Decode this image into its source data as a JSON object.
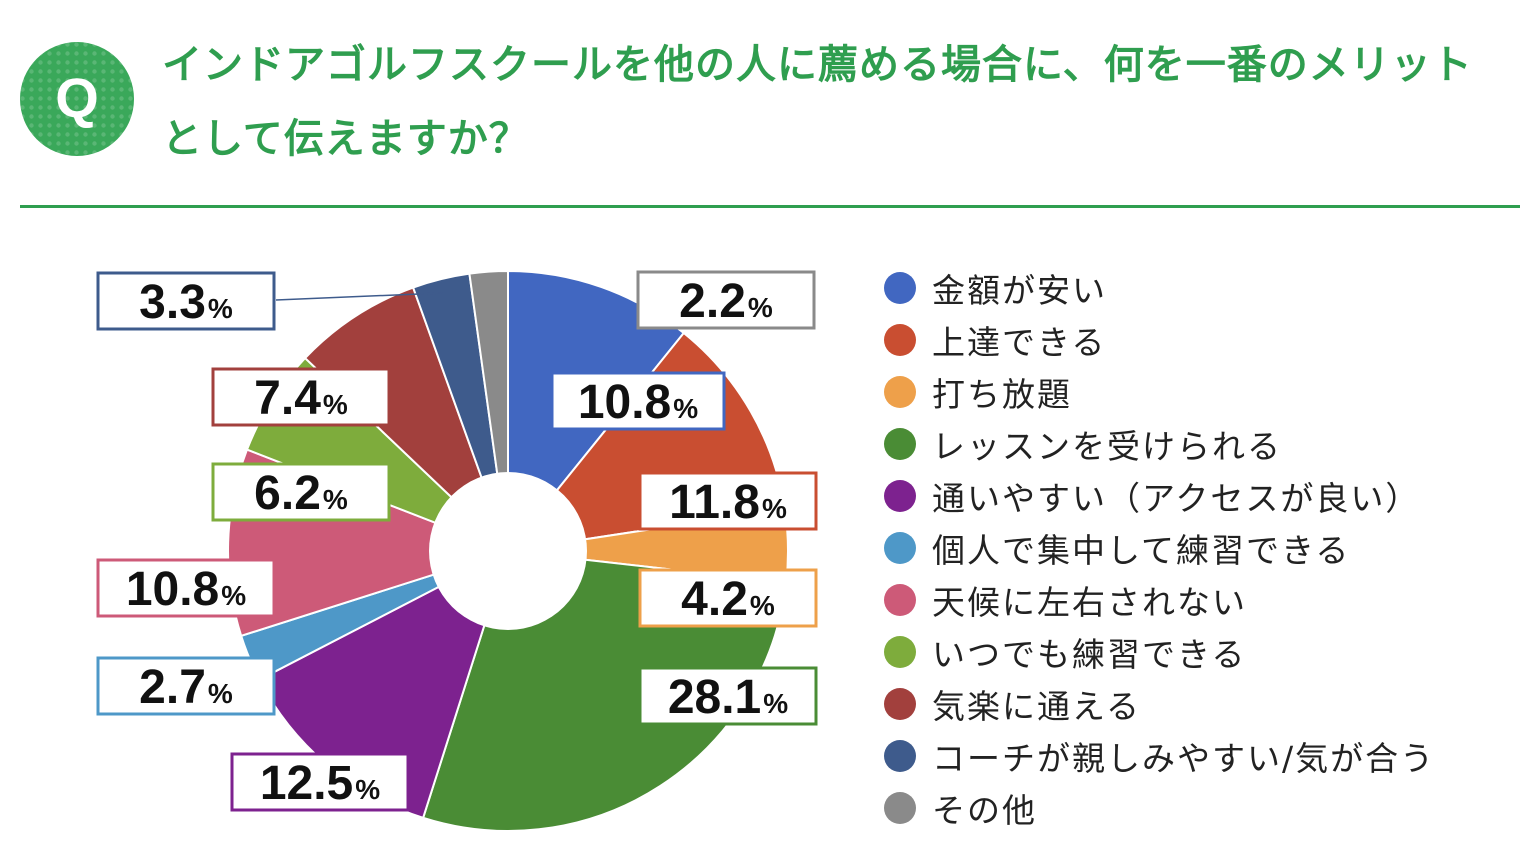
{
  "question": {
    "badge_letter": "Q",
    "title_line1": "インドアゴルフスクールを他の人に薦める場合に、何を一番のメリット",
    "title_line2": "として伝えますか？"
  },
  "colors": {
    "accent": "#2f9e4f",
    "badge": "#3aa85a"
  },
  "chart_data": {
    "type": "pie",
    "style": "donut",
    "unit": "%",
    "legend_position": "right",
    "slices": [
      {
        "label": "金額が安い",
        "value": 10.8,
        "color": "#4167c1",
        "label_text": "10.8"
      },
      {
        "label": "上達できる",
        "value": 11.8,
        "color": "#c94e31",
        "label_text": "11.8"
      },
      {
        "label": "打ち放題",
        "value": 4.2,
        "color": "#eea04a",
        "label_text": "4.2"
      },
      {
        "label": "レッスンを受けられる",
        "value": 28.1,
        "color": "#4a8c35",
        "label_text": "28.1"
      },
      {
        "label": "通いやすい（アクセスが良い）",
        "value": 12.5,
        "color": "#7d228f",
        "label_text": "12.5"
      },
      {
        "label": "個人で集中して練習できる",
        "value": 2.7,
        "color": "#4e98c8",
        "label_text": "2.7"
      },
      {
        "label": "天候に左右されない",
        "value": 10.8,
        "color": "#cd5a78",
        "label_text": "10.8"
      },
      {
        "label": "いつでも練習できる",
        "value": 6.2,
        "color": "#7eac3c",
        "label_text": "6.2"
      },
      {
        "label": "気楽に通える",
        "value": 7.4,
        "color": "#a2403d",
        "label_text": "7.4"
      },
      {
        "label": "コーチが親しみやすい/気が合う",
        "value": 3.3,
        "color": "#3e5b8c",
        "label_text": "3.3"
      },
      {
        "label": "その他",
        "value": 2.2,
        "color": "#8a8a8a",
        "label_text": "2.2"
      }
    ]
  }
}
